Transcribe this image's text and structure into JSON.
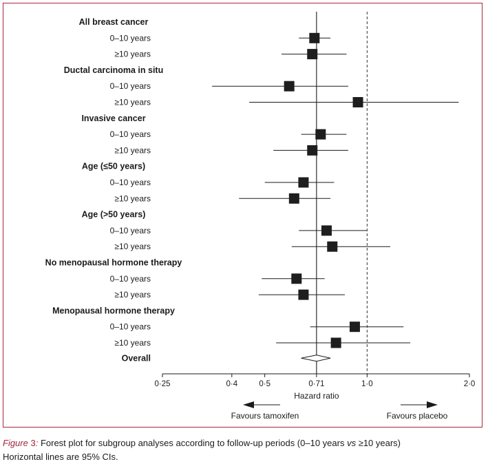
{
  "chart_data": {
    "type": "forest",
    "xlabel": "Hazard ratio",
    "xscale": "log",
    "xlim": [
      0.25,
      2.0
    ],
    "xticks": [
      {
        "value": 0.25,
        "label": "0·25"
      },
      {
        "value": 0.4,
        "label": "0·4"
      },
      {
        "value": 0.5,
        "label": "0·5"
      },
      {
        "value": 0.71,
        "label": "0·71"
      },
      {
        "value": 1.0,
        "label": "1·0"
      },
      {
        "value": 2.0,
        "label": "2·0"
      }
    ],
    "reference_line": 0.71,
    "null_line": 1.0,
    "favours_left": "Favours tamoxifen",
    "favours_right": "Favours placebo",
    "groups": [
      {
        "label": "All breast cancer",
        "rows": [
          {
            "label": "0–10 years",
            "hr": 0.7,
            "lo": 0.63,
            "hi": 0.78
          },
          {
            "label": "≥10 years",
            "hr": 0.69,
            "lo": 0.56,
            "hi": 0.87
          }
        ]
      },
      {
        "label": "Ductal carcinoma in situ",
        "rows": [
          {
            "label": "0–10 years",
            "hr": 0.59,
            "lo": 0.35,
            "hi": 0.88
          },
          {
            "label": "≥10 years",
            "hr": 0.94,
            "lo": 0.45,
            "hi": 1.86
          }
        ]
      },
      {
        "label": "Invasive cancer",
        "rows": [
          {
            "label": "0–10 years",
            "hr": 0.73,
            "lo": 0.64,
            "hi": 0.87
          },
          {
            "label": "≥10 years",
            "hr": 0.69,
            "lo": 0.53,
            "hi": 0.88
          }
        ]
      },
      {
        "label": "Age (≤50 years)",
        "rows": [
          {
            "label": "0–10 years",
            "hr": 0.65,
            "lo": 0.5,
            "hi": 0.8
          },
          {
            "label": "≥10 years",
            "hr": 0.61,
            "lo": 0.42,
            "hi": 0.78
          }
        ]
      },
      {
        "label": "Age (>50 years)",
        "rows": [
          {
            "label": "0–10 years",
            "hr": 0.76,
            "lo": 0.63,
            "hi": 1.0
          },
          {
            "label": "≥10 years",
            "hr": 0.79,
            "lo": 0.6,
            "hi": 1.17
          }
        ]
      },
      {
        "label": "No menopausal hormone therapy",
        "rows": [
          {
            "label": "0–10 years",
            "hr": 0.62,
            "lo": 0.49,
            "hi": 0.75
          },
          {
            "label": "≥10 years",
            "hr": 0.65,
            "lo": 0.48,
            "hi": 0.86
          }
        ]
      },
      {
        "label": "Menopausal hormone therapy",
        "rows": [
          {
            "label": "0–10 years",
            "hr": 0.92,
            "lo": 0.68,
            "hi": 1.28
          },
          {
            "label": "≥10 years",
            "hr": 0.81,
            "lo": 0.54,
            "hi": 1.34
          }
        ]
      }
    ],
    "overall": {
      "label": "Overall",
      "hr": 0.71,
      "lo": 0.64,
      "hi": 0.78
    }
  },
  "caption": {
    "label": "Figure ",
    "number": "3",
    "label_suffix": ":",
    "text": " Forest plot for subgroup analyses according to follow-up periods (0–10 years ",
    "vs": "vs",
    "text_end": " ≥10 years)",
    "note": "Horizontal lines are 95% CIs."
  },
  "colors": {
    "frame": "#a3283e",
    "ink": "#1a1a1a"
  }
}
